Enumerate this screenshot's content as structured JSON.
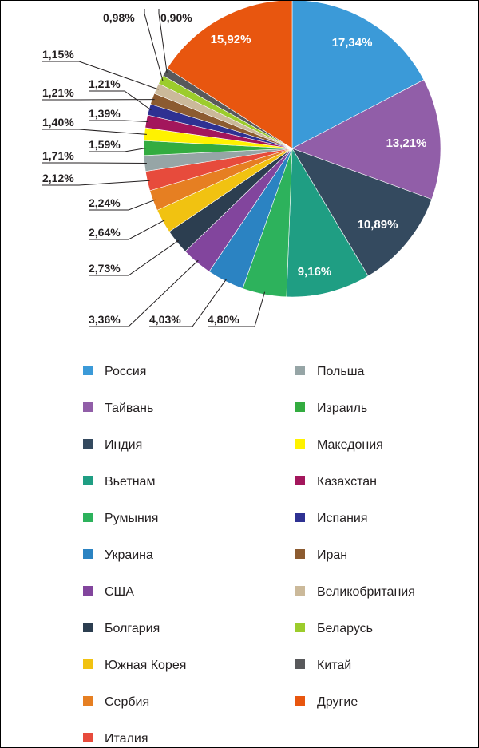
{
  "chart_data": {
    "type": "pie",
    "title": "",
    "start_angle_deg": 0,
    "direction": "clockwise",
    "series": [
      {
        "name": "Россия",
        "value": 17.34,
        "label": "17,34%",
        "color": "#3b9ad8"
      },
      {
        "name": "Тайвань",
        "value": 13.21,
        "label": "13,21%",
        "color": "#915ea8"
      },
      {
        "name": "Индия",
        "value": 10.89,
        "label": "10,89%",
        "color": "#344a5f"
      },
      {
        "name": "Вьетнам",
        "value": 9.16,
        "label": "9,16%",
        "color": "#1f9e83"
      },
      {
        "name": "Румыния",
        "value": 4.8,
        "label": "4,80%",
        "color": "#2db25c"
      },
      {
        "name": "Украина",
        "value": 4.03,
        "label": "4,03%",
        "color": "#2b83c2"
      },
      {
        "name": "США",
        "value": 3.36,
        "label": "3,36%",
        "color": "#82459d"
      },
      {
        "name": "Болгария",
        "value": 2.73,
        "label": "2,73%",
        "color": "#2c3e50"
      },
      {
        "name": "Южная Корея",
        "value": 2.64,
        "label": "2,64%",
        "color": "#f1c211"
      },
      {
        "name": "Сербия",
        "value": 2.24,
        "label": "2,24%",
        "color": "#e67f22"
      },
      {
        "name": "Италия",
        "value": 2.12,
        "label": "2,12%",
        "color": "#e74b3c"
      },
      {
        "name": "Польша",
        "value": 1.71,
        "label": "1,71%",
        "color": "#96a5a6"
      },
      {
        "name": "Израиль",
        "value": 1.59,
        "label": "1,59%",
        "color": "#33ac40"
      },
      {
        "name": "Македония",
        "value": 1.4,
        "label": "1,40%",
        "color": "#fff200"
      },
      {
        "name": "Казахстан",
        "value": 1.39,
        "label": "1,39%",
        "color": "#a3165c"
      },
      {
        "name": "Испания",
        "value": 1.21,
        "label": "1,21%",
        "color": "#2e3192"
      },
      {
        "name": "Иран",
        "value": 1.21,
        "label": "1,21%",
        "color": "#8c5b30"
      },
      {
        "name": "Великобритания",
        "value": 1.15,
        "label": "1,15%",
        "color": "#cbb99a"
      },
      {
        "name": "Беларусь",
        "value": 0.98,
        "label": "0,98%",
        "color": "#9ccc2c"
      },
      {
        "name": "Китай",
        "value": 0.9,
        "label": "0,90%",
        "color": "#58595b"
      },
      {
        "name": "Другие",
        "value": 15.92,
        "label": "15,92%",
        "color": "#e8560f"
      }
    ]
  }
}
